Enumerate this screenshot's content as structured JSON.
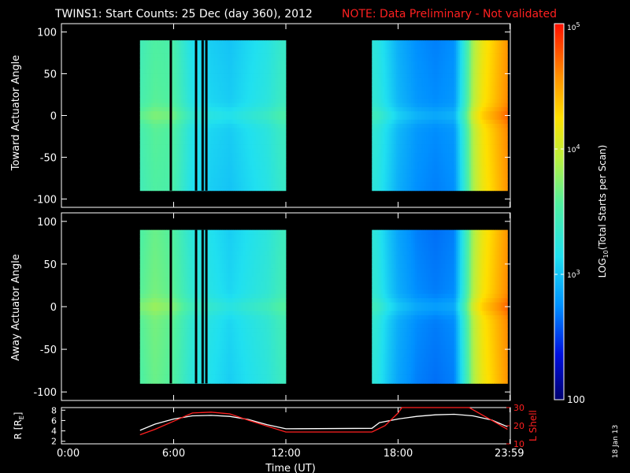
{
  "header": {
    "title": "TWINS1: Start Counts: 25 Dec (day 360), 2012",
    "note": "NOTE: Data Preliminary - Not validated"
  },
  "colorbar": {
    "label": "LOG10(Total Starts per Scan)",
    "label_main": "LOG",
    "label_sub": "10",
    "label_rest": "(Total Starts per Scan)",
    "ticks": [
      {
        "value": 100,
        "text": "100"
      },
      {
        "value": 1000,
        "text_base": "10",
        "text_exp": "3"
      },
      {
        "value": 10000,
        "text_base": "10",
        "text_exp": "4"
      },
      {
        "value": 100000,
        "text_base": "10",
        "text_exp": "5"
      }
    ],
    "range": [
      100,
      100000
    ],
    "scale": "log"
  },
  "datestamp": "18 Jan 13",
  "colors": {
    "background": "#000000",
    "axis": "#ffffff",
    "note": "#ff2020",
    "lshell": "#ff2020",
    "radius": "#ffffff"
  },
  "chart_data": [
    {
      "type": "heatmap",
      "ylabel": "Toward Actuator Angle",
      "xlim": [
        0,
        24
      ],
      "ylim": [
        -110,
        110
      ],
      "yticks": [
        100,
        50,
        0,
        -50,
        -100
      ],
      "data_coverage_hours": [
        [
          4.2,
          12.0
        ],
        [
          16.6,
          23.85
        ]
      ],
      "gap_columns_hours": [
        5.85,
        7.2,
        7.55,
        7.75
      ],
      "column_log10_values_approx": {
        "hours": [
          4.3,
          5.0,
          6.0,
          7.0,
          8.0,
          9.0,
          10.0,
          11.0,
          11.8,
          16.8,
          17.5,
          18.0,
          19.0,
          20.0,
          21.0,
          21.5,
          22.0,
          22.5,
          23.0,
          23.5,
          23.8
        ],
        "log10_counts": [
          3.5,
          3.6,
          3.55,
          3.2,
          3.1,
          3.05,
          3.15,
          3.25,
          3.4,
          3.3,
          3.1,
          2.95,
          2.8,
          2.75,
          2.8,
          3.3,
          3.9,
          4.2,
          4.35,
          4.5,
          4.6
        ]
      }
    },
    {
      "type": "heatmap",
      "ylabel": "Away Actuator Angle",
      "xlim": [
        0,
        24
      ],
      "ylim": [
        -110,
        110
      ],
      "yticks": [
        100,
        50,
        0,
        -50,
        -100
      ],
      "data_coverage_hours": [
        [
          4.2,
          12.0
        ],
        [
          16.6,
          23.85
        ]
      ],
      "gap_columns_hours": [
        5.85,
        7.2,
        7.55,
        7.75
      ],
      "column_log10_values_approx": {
        "hours": [
          4.3,
          5.0,
          6.0,
          7.0,
          8.0,
          9.0,
          10.0,
          11.0,
          11.8,
          16.8,
          17.5,
          18.0,
          19.0,
          20.0,
          21.0,
          21.5,
          22.0,
          22.5,
          23.0,
          23.5,
          23.8
        ],
        "log10_counts": [
          3.6,
          3.7,
          3.6,
          3.3,
          3.2,
          3.1,
          3.2,
          3.3,
          3.45,
          3.3,
          3.05,
          2.9,
          2.75,
          2.7,
          2.75,
          3.3,
          3.9,
          4.2,
          4.35,
          4.5,
          4.6
        ]
      }
    },
    {
      "type": "line",
      "ylabel_left": "R [RE]",
      "ylabel_left_main": "R [R",
      "ylabel_left_sub": "E",
      "ylabel_left_end": "]",
      "ylabel_right": "L Shell",
      "xlabel": "Time (UT)",
      "xlim": [
        0,
        24
      ],
      "xticks": [
        {
          "value": 0,
          "text": "0:00"
        },
        {
          "value": 6,
          "text": "6:00"
        },
        {
          "value": 12,
          "text": "12:00"
        },
        {
          "value": 18,
          "text": "18:00"
        },
        {
          "value": 23.98,
          "text": "23:59"
        }
      ],
      "ylim_left": [
        1.5,
        8.5
      ],
      "yticks_left": [
        2,
        4,
        6,
        8
      ],
      "ylim_right": [
        10,
        30
      ],
      "yticks_right": [
        10,
        20,
        30
      ],
      "series": [
        {
          "axis": "left",
          "x": [
            4.2,
            5.0,
            6.0,
            7.0,
            8.0,
            9.0,
            10.0,
            11.0,
            12.0,
            16.6,
            17.0,
            18.0,
            19.0,
            20.0,
            21.0,
            22.0,
            23.0,
            23.85
          ],
          "y": [
            4.1,
            5.3,
            6.3,
            6.9,
            7.0,
            6.8,
            6.2,
            5.2,
            4.4,
            4.5,
            5.6,
            6.3,
            6.8,
            7.1,
            7.2,
            6.9,
            6.1,
            4.8
          ]
        },
        {
          "axis": "right",
          "x": [
            4.2,
            5.0,
            6.0,
            7.0,
            8.0,
            9.0,
            10.0,
            12.0,
            16.6,
            17.3,
            18.0,
            18.2,
            18.5,
            21.5,
            21.8,
            23.0,
            23.85
          ],
          "y": [
            15.0,
            18.0,
            22.5,
            27.0,
            27.5,
            26.5,
            23.0,
            16.5,
            16.5,
            20.0,
            27.0,
            30.0,
            30.0,
            30.0,
            30.0,
            23.0,
            18.0
          ]
        }
      ]
    }
  ]
}
